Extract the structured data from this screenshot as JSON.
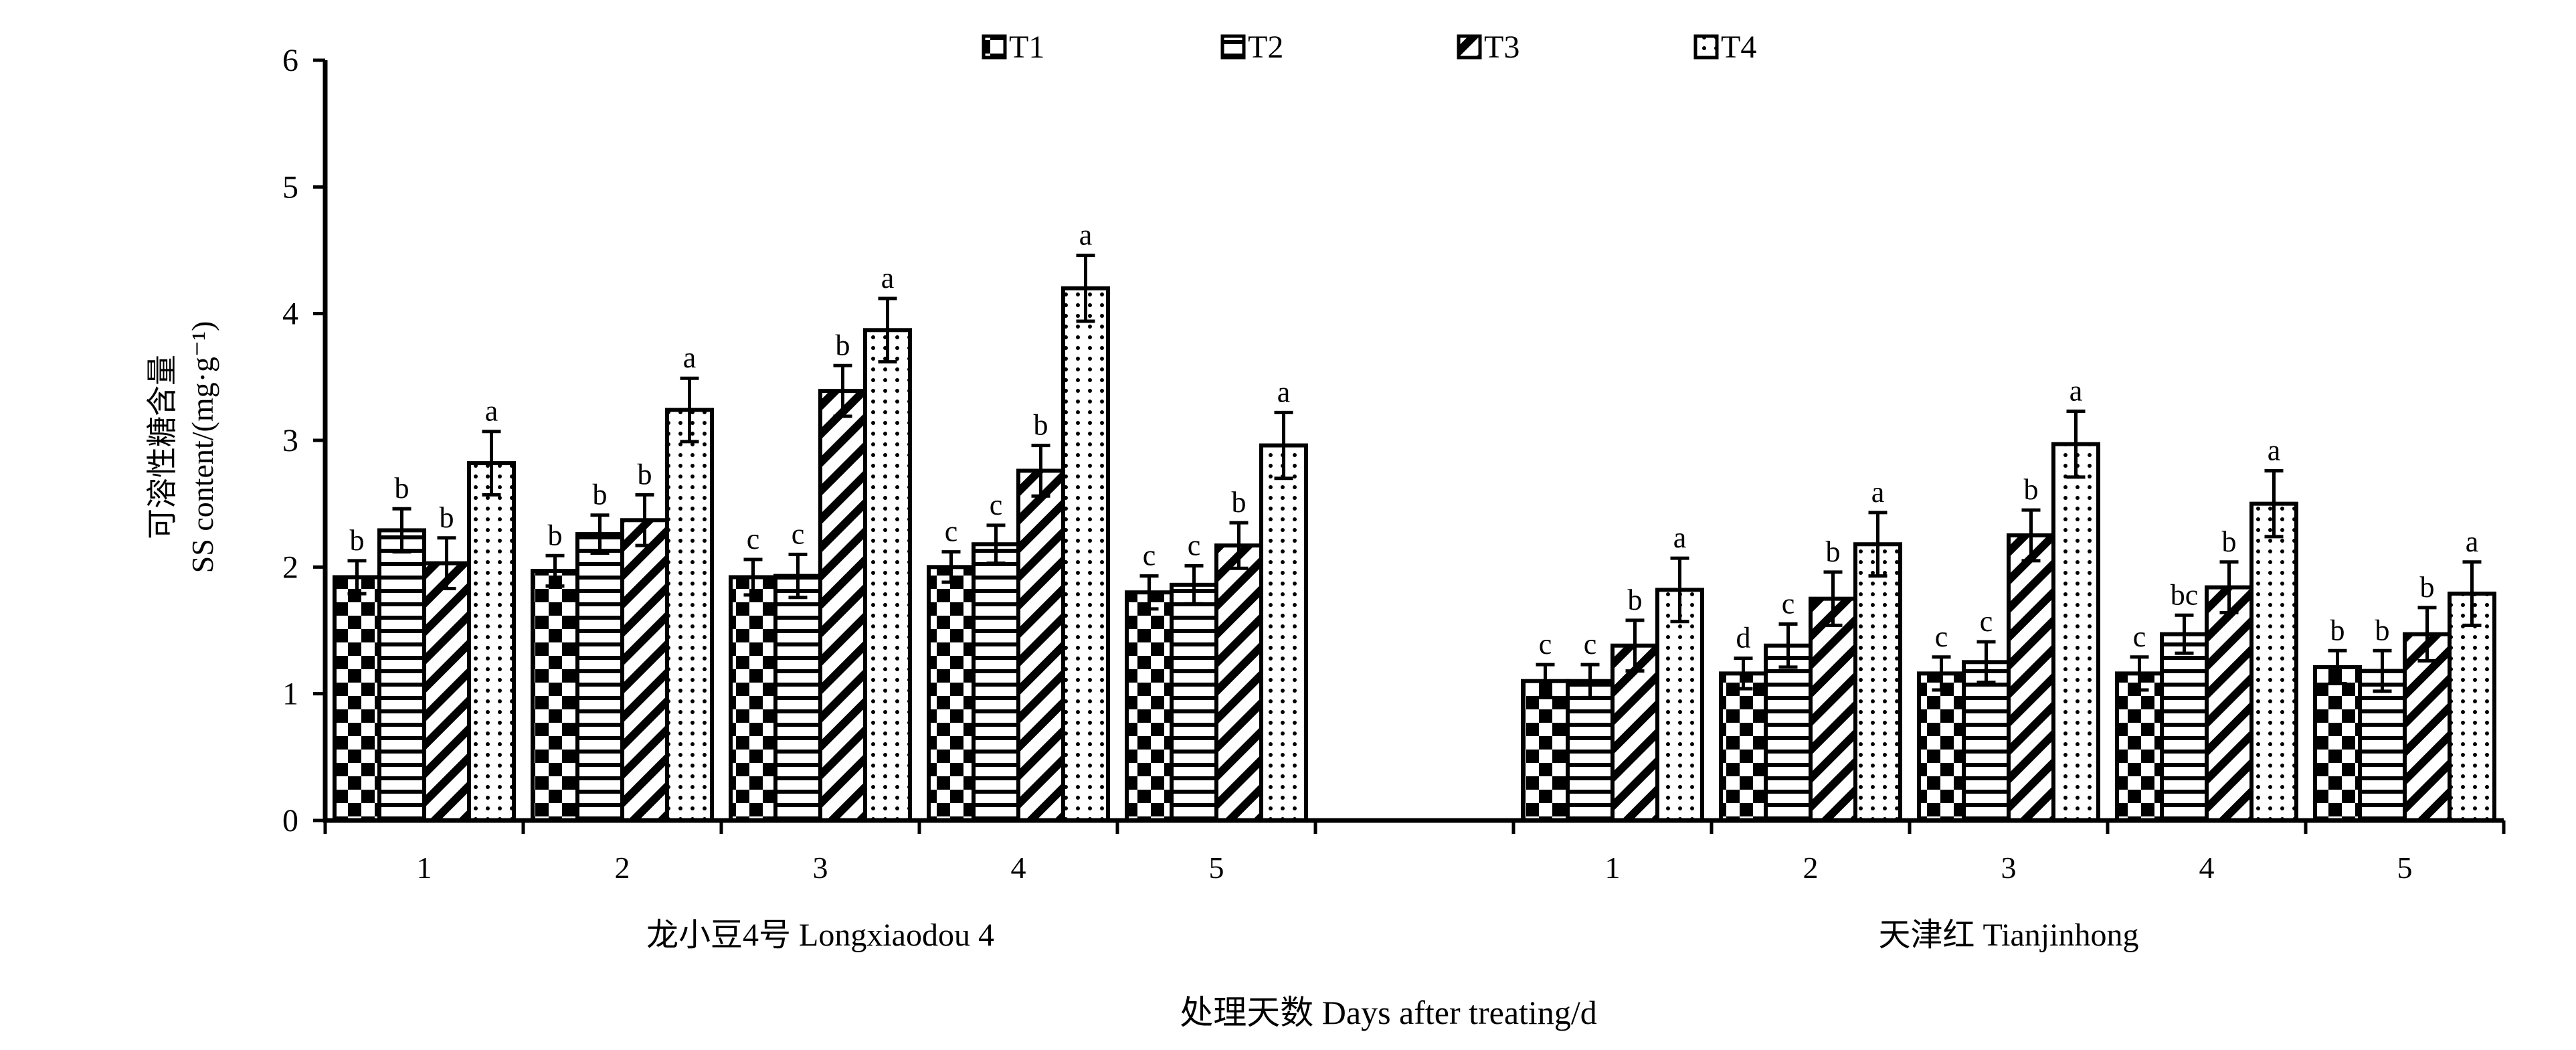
{
  "chart_data": {
    "type": "bar",
    "xlabel": "处理天数 Days after treating/d",
    "ylabel": [
      "可溶性糖含量",
      "SS content/(mg·g⁻¹)"
    ],
    "ylim": [
      0,
      6
    ],
    "yticks": [
      0,
      1,
      2,
      3,
      4,
      5,
      6
    ],
    "grid": false,
    "legend": {
      "position": "top"
    },
    "groups": [
      {
        "name": "龙小豆4号 Longxiaodou 4",
        "categories": [
          "1",
          "2",
          "3",
          "4",
          "5"
        ]
      },
      {
        "name": "天津红 Tianjinhong",
        "categories": [
          "1",
          "2",
          "3",
          "4",
          "5"
        ]
      }
    ],
    "series": [
      {
        "name": "T1",
        "values": [
          [
            1.92,
            1.97,
            1.92,
            2.0,
            1.8
          ],
          [
            1.1,
            1.16,
            1.16,
            1.16,
            1.21
          ]
        ],
        "errors": [
          [
            0.13,
            0.12,
            0.14,
            0.12,
            0.13
          ],
          [
            0.13,
            0.12,
            0.13,
            0.13,
            0.13
          ]
        ],
        "letters": [
          [
            "b",
            "b",
            "c",
            "c",
            "c"
          ],
          [
            "c",
            "d",
            "c",
            "c",
            "b"
          ]
        ]
      },
      {
        "name": "T2",
        "values": [
          [
            2.29,
            2.26,
            1.93,
            2.18,
            1.86
          ],
          [
            1.1,
            1.38,
            1.25,
            1.47,
            1.18
          ]
        ],
        "errors": [
          [
            0.17,
            0.15,
            0.17,
            0.15,
            0.15
          ],
          [
            0.13,
            0.17,
            0.16,
            0.15,
            0.16
          ]
        ],
        "letters": [
          [
            "b",
            "b",
            "c",
            "c",
            "c"
          ],
          [
            "c",
            "c",
            "c",
            "bc",
            "b"
          ]
        ]
      },
      {
        "name": "T3",
        "values": [
          [
            2.03,
            2.37,
            3.39,
            2.76,
            2.17
          ],
          [
            1.38,
            1.75,
            2.25,
            1.84,
            1.47
          ]
        ],
        "errors": [
          [
            0.2,
            0.2,
            0.2,
            0.2,
            0.18
          ],
          [
            0.2,
            0.21,
            0.2,
            0.2,
            0.21
          ]
        ],
        "letters": [
          [
            "b",
            "b",
            "b",
            "b",
            "b"
          ],
          [
            "b",
            "b",
            "b",
            "b",
            "b"
          ]
        ]
      },
      {
        "name": "T4",
        "values": [
          [
            2.82,
            3.24,
            3.87,
            4.2,
            2.96
          ],
          [
            1.82,
            2.18,
            2.97,
            2.5,
            1.79
          ]
        ],
        "errors": [
          [
            0.25,
            0.25,
            0.25,
            0.26,
            0.26
          ],
          [
            0.25,
            0.25,
            0.26,
            0.26,
            0.25
          ]
        ],
        "letters": [
          [
            "a",
            "a",
            "a",
            "a",
            "a"
          ],
          [
            "a",
            "a",
            "a",
            "a",
            "a"
          ]
        ]
      }
    ]
  }
}
